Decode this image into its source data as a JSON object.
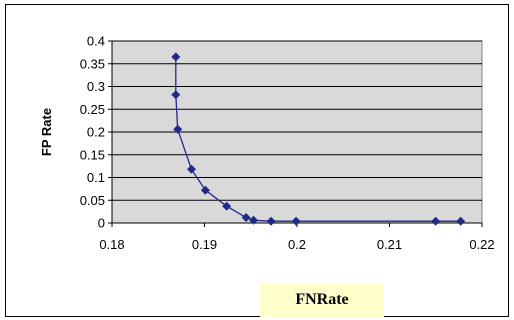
{
  "chart_data": {
    "type": "line",
    "xlabel": "FNRate",
    "ylabel": "FP Rate",
    "xlim": [
      0.18,
      0.22
    ],
    "ylim": [
      0,
      0.4
    ],
    "x_ticks": [
      "0.18",
      "0.19",
      "0.2",
      "0.21",
      "0.22"
    ],
    "y_ticks": [
      "0",
      "0.05",
      "0.1",
      "0.15",
      "0.2",
      "0.25",
      "0.3",
      "0.35",
      "0.4"
    ],
    "grid": "horizontal",
    "marker": "diamond",
    "line_color": "#1f2a8a",
    "marker_color": "#1f2a8a",
    "plot_background": "#d9d9d9",
    "series": [
      {
        "x": [
          0.1869,
          0.1869,
          0.1871,
          0.1886,
          0.1901,
          0.1924,
          0.1945,
          0.1953,
          0.1972,
          0.1999,
          0.215,
          0.2177
        ],
        "y": [
          0.365,
          0.282,
          0.206,
          0.118,
          0.072,
          0.037,
          0.012,
          0.006,
          0.004,
          0.004,
          0.004,
          0.004
        ]
      }
    ]
  }
}
